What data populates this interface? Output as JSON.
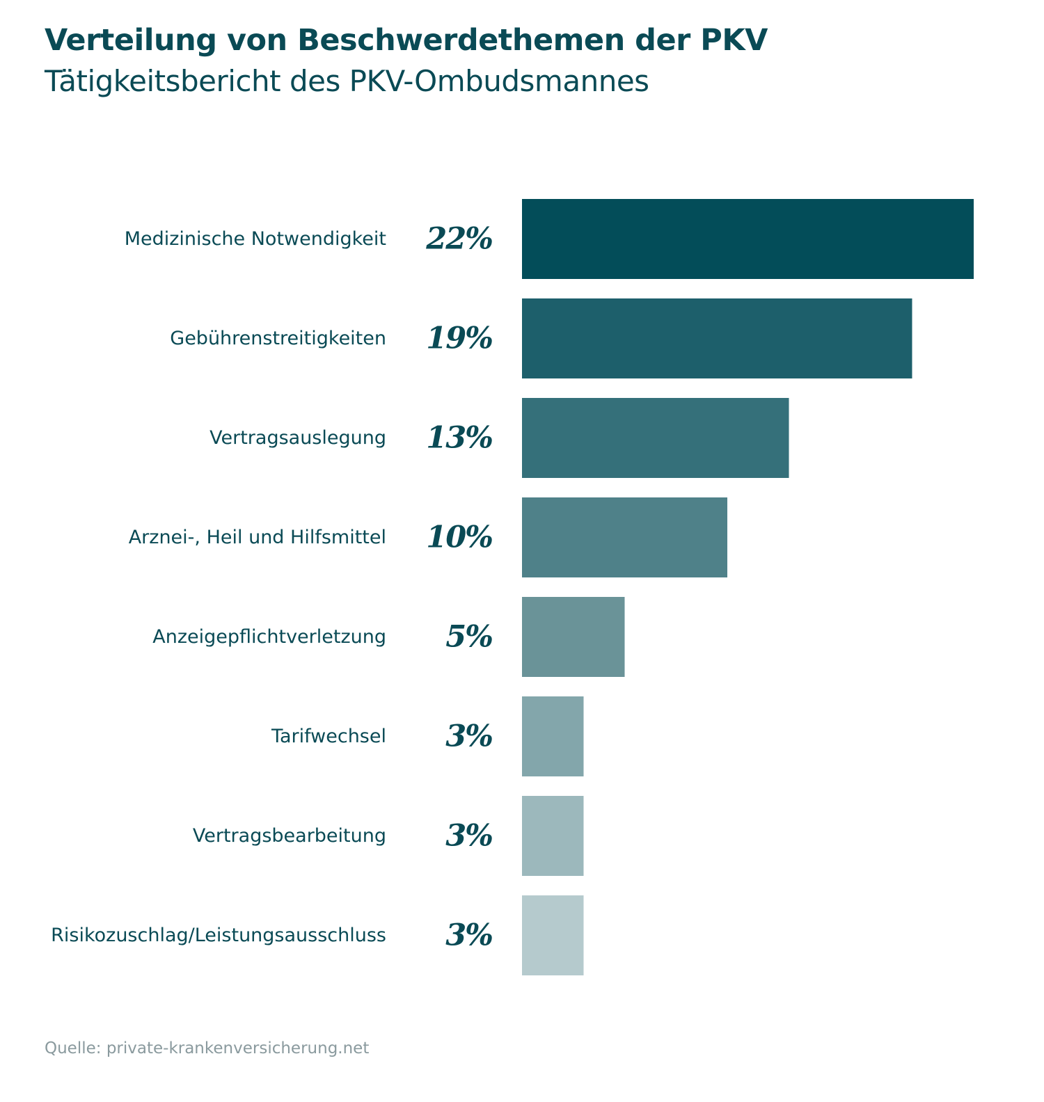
{
  "colors": {
    "text_primary": "#0a4a55",
    "text_source": "#8a9a9e",
    "bars": [
      "#034d59",
      "#1d5f6b",
      "#35707a",
      "#4f8189",
      "#6a9398",
      "#83a6ab",
      "#9cb8bc",
      "#b5cacd"
    ]
  },
  "header": {
    "title": "Verteilung von Beschwerdethemen der PKV",
    "subtitle": "Tätigkeitsbericht des PKV-Ombudsmannes"
  },
  "footer": {
    "source": "Quelle: private-krankenversicherung.net"
  },
  "chart_data": {
    "type": "bar",
    "orientation": "horizontal",
    "title": "Verteilung von Beschwerdethemen der PKV",
    "subtitle": "Tätigkeitsbericht des PKV-Ombudsmannes",
    "xlabel": "",
    "ylabel": "",
    "grid": false,
    "legend": "none",
    "xlim": [
      0,
      22
    ],
    "categories": [
      "Medizinische Notwendigkeit",
      "Gebührenstreitigkeiten",
      "Vertragsauslegung",
      "Arznei-, Heil und Hilfsmittel",
      "Anzeigepflichtverletzung",
      "Tarifwechsel",
      "Vertragsbearbeitung",
      "Risikozuschlag/Leistungsausschluss"
    ],
    "values": [
      22,
      19,
      13,
      10,
      5,
      3,
      3,
      3
    ],
    "value_labels": [
      "22%",
      "19%",
      "13%",
      "10%",
      "5%",
      "3%",
      "3%",
      "3%"
    ]
  }
}
